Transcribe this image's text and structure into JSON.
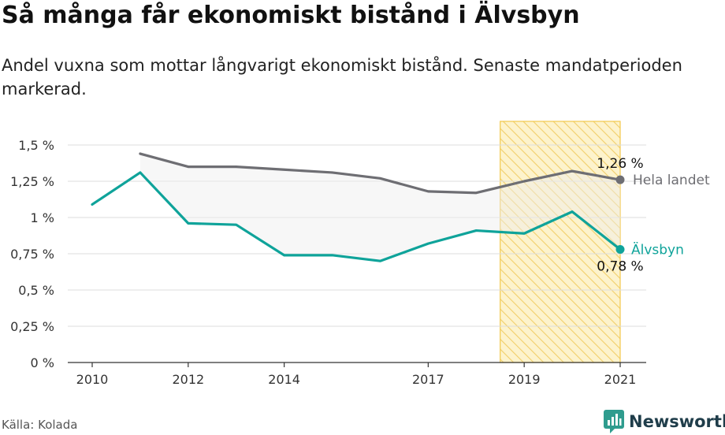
{
  "title": "Så många får ekonomiskt bistånd i Älvsbyn",
  "subtitle": "Andel vuxna som mottar långvarigt ekonomiskt bistånd. Senaste mandatperioden markerad.",
  "source": "Källa: Kolada",
  "brand": "Newsworthy",
  "colors": {
    "hela_landet": "#6e6e73",
    "alvsbyn": "#0fa39a",
    "highlight_fill": "#fdf3cc",
    "highlight_stroke": "#f2c94c",
    "band_fill": "#eeeeee",
    "brand": "#1f3d4a"
  },
  "chart_data": {
    "type": "line",
    "x_ticks": [
      {
        "value": 2010,
        "label": "2010"
      },
      {
        "value": 2012,
        "label": "2012"
      },
      {
        "value": 2014,
        "label": "2014"
      },
      {
        "value": 2017,
        "label": "2017"
      },
      {
        "value": 2019,
        "label": "2019"
      },
      {
        "value": 2021,
        "label": "2021"
      }
    ],
    "y_ticks": [
      {
        "value": 0,
        "label": "0 %"
      },
      {
        "value": 0.25,
        "label": "0,25 %"
      },
      {
        "value": 0.5,
        "label": "0,5 %"
      },
      {
        "value": 0.75,
        "label": "0,75 %"
      },
      {
        "value": 1,
        "label": "1 %"
      },
      {
        "value": 1.25,
        "label": "1,25 %"
      },
      {
        "value": 1.5,
        "label": "1,5 %"
      }
    ],
    "xlim": [
      2010,
      2021
    ],
    "ylim": [
      0,
      1.5
    ],
    "grid": true,
    "highlight": {
      "from": 2018.5,
      "to": 2021
    },
    "series": [
      {
        "name": "Hela landet",
        "key": "hela_landet",
        "end_value_label": "1,26 %",
        "points": [
          {
            "x": 2011,
            "y": 1.44
          },
          {
            "x": 2012,
            "y": 1.35
          },
          {
            "x": 2013,
            "y": 1.35
          },
          {
            "x": 2014,
            "y": 1.33
          },
          {
            "x": 2015,
            "y": 1.31
          },
          {
            "x": 2016,
            "y": 1.27
          },
          {
            "x": 2017,
            "y": 1.18
          },
          {
            "x": 2018,
            "y": 1.17
          },
          {
            "x": 2019,
            "y": 1.25
          },
          {
            "x": 2020,
            "y": 1.32
          },
          {
            "x": 2021,
            "y": 1.26
          }
        ]
      },
      {
        "name": "Älvsbyn",
        "key": "alvsbyn",
        "end_value_label": "0,78 %",
        "points": [
          {
            "x": 2010,
            "y": 1.09
          },
          {
            "x": 2011,
            "y": 1.31
          },
          {
            "x": 2012,
            "y": 0.96
          },
          {
            "x": 2013,
            "y": 0.95
          },
          {
            "x": 2014,
            "y": 0.74
          },
          {
            "x": 2015,
            "y": 0.74
          },
          {
            "x": 2016,
            "y": 0.7
          },
          {
            "x": 2017,
            "y": 0.82
          },
          {
            "x": 2018,
            "y": 0.91
          },
          {
            "x": 2019,
            "y": 0.89
          },
          {
            "x": 2020,
            "y": 1.04
          },
          {
            "x": 2021,
            "y": 0.78
          }
        ]
      }
    ]
  }
}
